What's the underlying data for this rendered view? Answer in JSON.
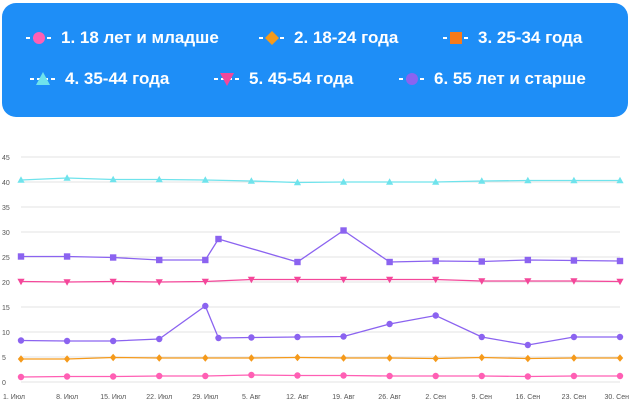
{
  "chart_data": {
    "type": "line",
    "categories": [
      "1. Июл",
      "8. Июл",
      "15. Июл",
      "22. Июл",
      "29. Июл",
      "5. Авг",
      "12. Авг",
      "19. Авг",
      "26. Авг",
      "2. Сен",
      "9. Сен",
      "16. Сен",
      "23. Сен",
      "30. Сен"
    ],
    "x": [
      0,
      7,
      14,
      21,
      28,
      35,
      42,
      49,
      56,
      63,
      70,
      77,
      84,
      91
    ],
    "ylim": [
      0,
      45
    ],
    "yticks": [
      "0",
      "5",
      "10",
      "15",
      "20",
      "25",
      "30",
      "35",
      "40",
      "45"
    ],
    "grid": true,
    "legend_position": "top",
    "series": [
      {
        "name": "1. 18 лет и младше",
        "color": "#ff5fb4",
        "marker": "circle",
        "points": [
          [
            0,
            1.0
          ],
          [
            7,
            1.1
          ],
          [
            14,
            1.1
          ],
          [
            21,
            1.2
          ],
          [
            28,
            1.2
          ],
          [
            35,
            1.4
          ],
          [
            42,
            1.3
          ],
          [
            49,
            1.3
          ],
          [
            56,
            1.2
          ],
          [
            63,
            1.2
          ],
          [
            70,
            1.2
          ],
          [
            77,
            1.1
          ],
          [
            84,
            1.2
          ],
          [
            91,
            1.2
          ]
        ]
      },
      {
        "name": "2. 18-24 года",
        "color": "#f59a1b",
        "marker": "diamond",
        "points": [
          [
            0,
            4.6
          ],
          [
            7,
            4.6
          ],
          [
            14,
            4.9
          ],
          [
            21,
            4.8
          ],
          [
            28,
            4.8
          ],
          [
            35,
            4.8
          ],
          [
            42,
            4.9
          ],
          [
            49,
            4.8
          ],
          [
            56,
            4.8
          ],
          [
            63,
            4.7
          ],
          [
            70,
            4.9
          ],
          [
            77,
            4.7
          ],
          [
            84,
            4.8
          ],
          [
            91,
            4.8
          ]
        ]
      },
      {
        "name": "3. 25-34 года",
        "color": "#f77a1a",
        "marker": "square",
        "points": []
      },
      {
        "name": "4. 35-44 года",
        "color": "#6fe3ec",
        "marker": "triangle-up",
        "points": [
          [
            0,
            40.4
          ],
          [
            7,
            40.8
          ],
          [
            14,
            40.5
          ],
          [
            21,
            40.5
          ],
          [
            28,
            40.4
          ],
          [
            35,
            40.2
          ],
          [
            42,
            39.9
          ],
          [
            49,
            40.0
          ],
          [
            56,
            40.0
          ],
          [
            63,
            40.0
          ],
          [
            70,
            40.2
          ],
          [
            77,
            40.3
          ],
          [
            84,
            40.3
          ],
          [
            91,
            40.3
          ]
        ]
      },
      {
        "name": "5. 45-54 года",
        "color": "#f4479a",
        "marker": "triangle-down",
        "points": [
          [
            0,
            20.1
          ],
          [
            7,
            20.0
          ],
          [
            14,
            20.1
          ],
          [
            21,
            20.0
          ],
          [
            28,
            20.1
          ],
          [
            35,
            20.5
          ],
          [
            42,
            20.5
          ],
          [
            49,
            20.5
          ],
          [
            56,
            20.5
          ],
          [
            63,
            20.5
          ],
          [
            70,
            20.2
          ],
          [
            77,
            20.2
          ],
          [
            84,
            20.2
          ],
          [
            91,
            20.1
          ]
        ]
      },
      {
        "name": "6. 55 лет и старше",
        "color": "#8b63f0",
        "marker": "circle",
        "points": [
          [
            0,
            8.3
          ],
          [
            7,
            8.2
          ],
          [
            14,
            8.2
          ],
          [
            21,
            8.6
          ],
          [
            28,
            15.2
          ],
          [
            30,
            8.8
          ],
          [
            35,
            8.9
          ],
          [
            42,
            9.0
          ],
          [
            49,
            9.1
          ],
          [
            56,
            11.6
          ],
          [
            63,
            13.3
          ],
          [
            70,
            9.0
          ],
          [
            77,
            7.4
          ],
          [
            84,
            9.0
          ],
          [
            91,
            9.0
          ]
        ]
      },
      {
        "name": "",
        "color": "#8b63f0",
        "marker": "square",
        "points": [
          [
            0,
            25.1
          ],
          [
            7,
            25.1
          ],
          [
            14,
            24.9
          ],
          [
            21,
            24.4
          ],
          [
            28,
            24.4
          ],
          [
            30,
            28.6
          ],
          [
            42,
            24.0
          ],
          [
            49,
            30.3
          ],
          [
            56,
            24.0
          ],
          [
            63,
            24.2
          ],
          [
            70,
            24.1
          ],
          [
            77,
            24.4
          ],
          [
            84,
            24.3
          ],
          [
            91,
            24.2
          ]
        ]
      }
    ]
  }
}
